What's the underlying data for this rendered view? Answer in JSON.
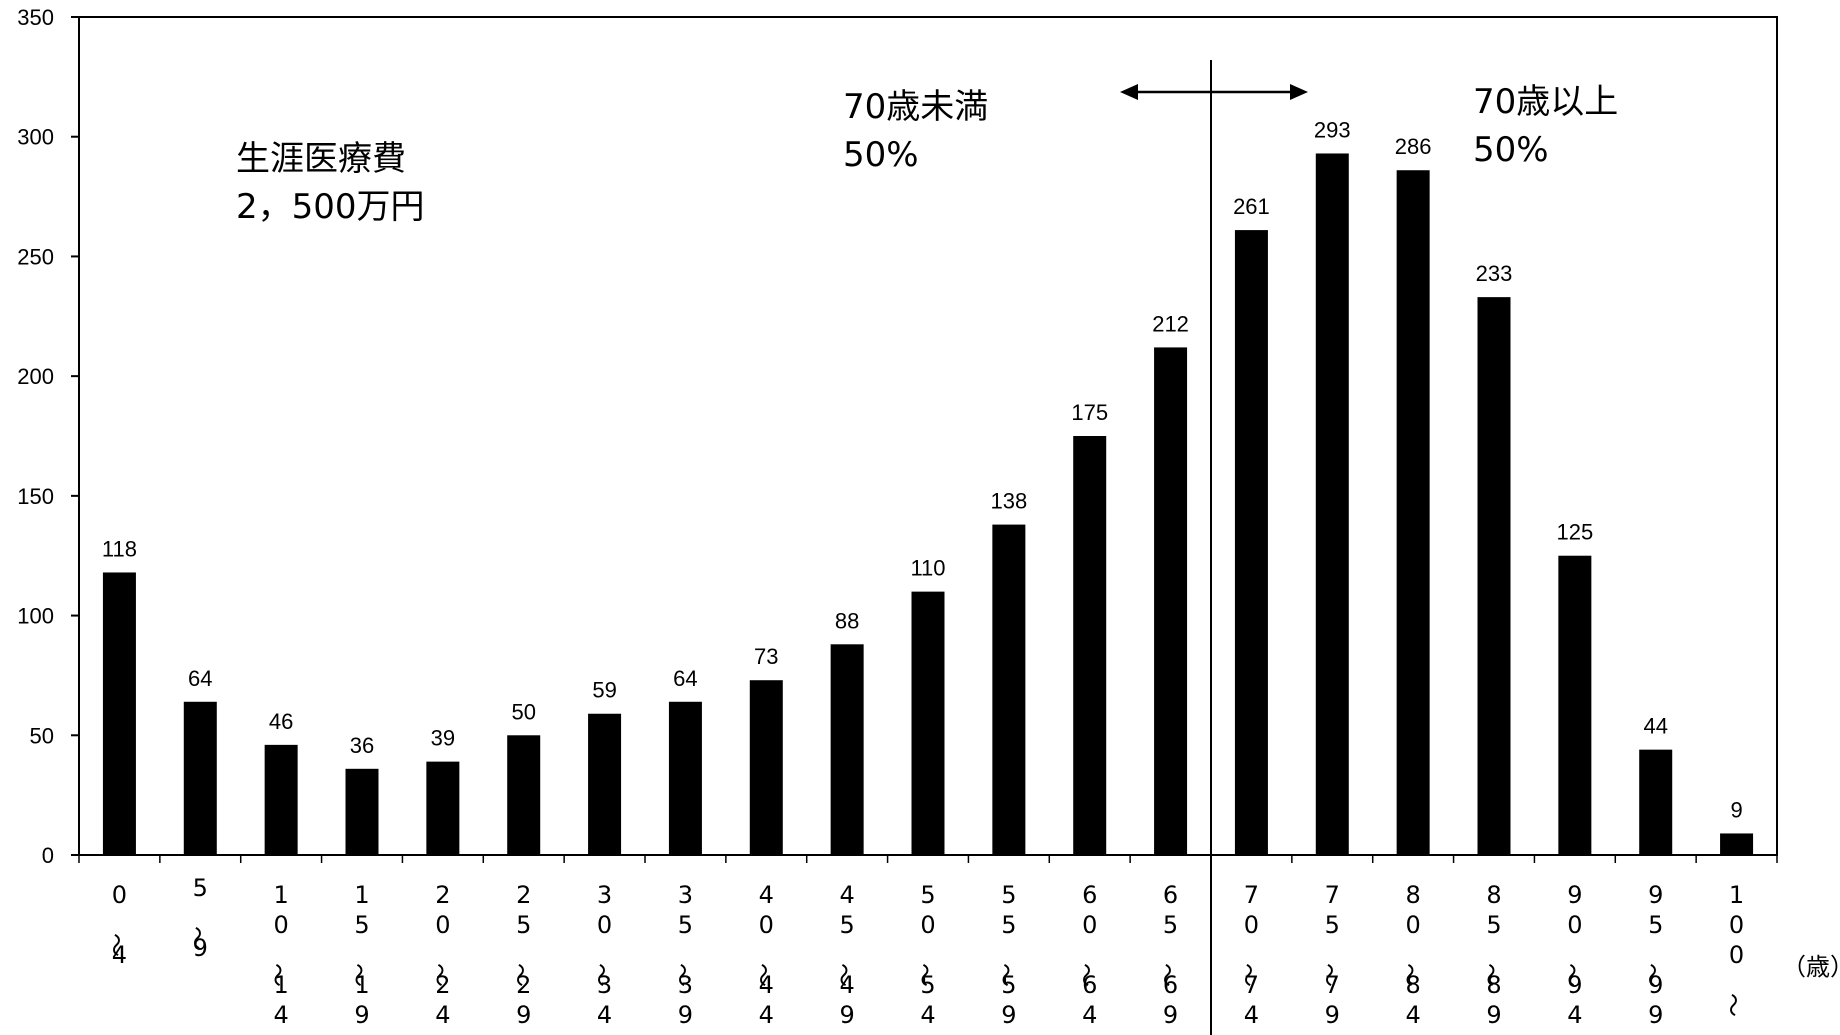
{
  "chart_data": {
    "type": "bar",
    "categories": [
      "0〜4",
      "5〜9",
      "10〜14",
      "15〜19",
      "20〜24",
      "25〜29",
      "30〜34",
      "35〜39",
      "40〜44",
      "45〜49",
      "50〜54",
      "55〜59",
      "60〜64",
      "65〜69",
      "70〜74",
      "75〜79",
      "80〜84",
      "85〜89",
      "90〜94",
      "95〜99",
      "100〜"
    ],
    "values": [
      118,
      64,
      46,
      36,
      39,
      50,
      59,
      64,
      73,
      88,
      110,
      138,
      175,
      212,
      261,
      293,
      286,
      233,
      125,
      44,
      9
    ],
    "ylim": [
      0,
      350
    ],
    "yticks": [
      0,
      50,
      100,
      150,
      200,
      250,
      300,
      350
    ],
    "x_unit_label": "（歳）",
    "bar_color": "#000000",
    "annotations": {
      "lifetime_cost_line1": "生涯医療費",
      "lifetime_cost_line2": "2，500万円",
      "under70_line1": "70歳未満",
      "under70_line2": "50%",
      "over70_line1": "70歳以上",
      "over70_line2": "50%"
    },
    "divider_between": [
      "65〜69",
      "70〜74"
    ],
    "grid": false
  }
}
